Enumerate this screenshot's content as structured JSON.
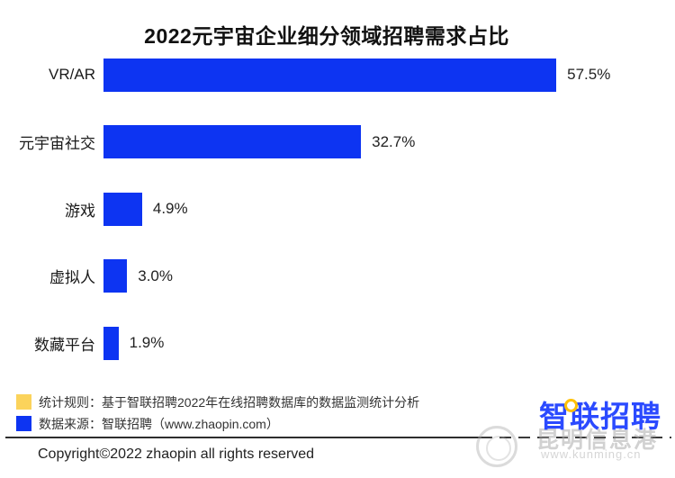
{
  "title": "2022元宇宙企业细分领域招聘需求占比",
  "chart_data": {
    "type": "bar",
    "orientation": "horizontal",
    "title": "2022元宇宙企业细分领域招聘需求占比",
    "categories": [
      "VR/AR",
      "元宇宙社交",
      "游戏",
      "虚拟人",
      "数藏平台"
    ],
    "values": [
      57.5,
      32.7,
      4.9,
      3.0,
      1.9
    ],
    "value_labels": [
      "57.5%",
      "32.7%",
      "4.9%",
      "3.0%",
      "1.9%"
    ],
    "xlabel": "",
    "ylabel": "",
    "xlim": [
      0,
      60
    ],
    "grid": false,
    "legend_position": "none",
    "bar_color": "#0d34f2",
    "value_label_position": "end-of-bar"
  },
  "legend": {
    "items": [
      {
        "color": "#fbd35b",
        "text": "统计规则：基于智联招聘2022年在线招聘数据库的数据监测统计分析"
      },
      {
        "color": "#0d34f2",
        "text": "数据来源：智联招聘（www.zhaopin.com）"
      }
    ]
  },
  "footer": {
    "copyright": "Copyright©2022 zhaopin all rights reserved"
  },
  "logo": {
    "text": "智联招聘",
    "color": "#2b4aff",
    "dot_color": "#ffc107"
  },
  "watermark": {
    "text": "昆明信息港",
    "subtext": "www.kunming.cn"
  }
}
